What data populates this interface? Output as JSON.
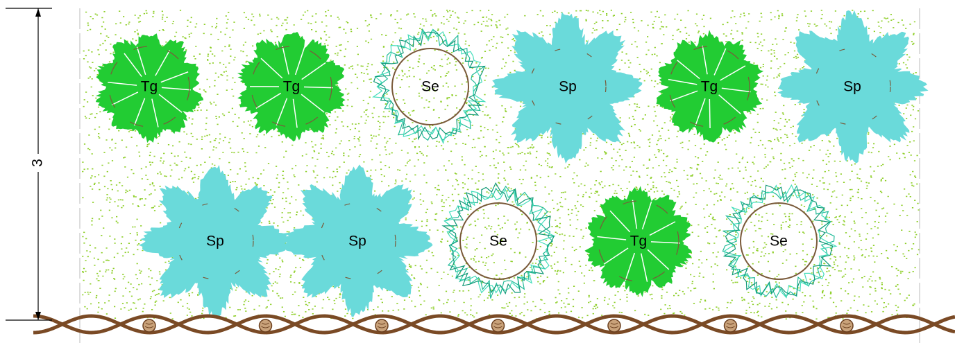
{
  "dimension": {
    "label": "3"
  },
  "plants": [
    {
      "label": "Tg"
    },
    {
      "label": "Tg"
    },
    {
      "label": "Se"
    },
    {
      "label": "Sp"
    },
    {
      "label": "Tg"
    },
    {
      "label": "Sp"
    },
    {
      "label": "Sp"
    },
    {
      "label": "Sp"
    },
    {
      "label": "Se"
    },
    {
      "label": "Tg"
    },
    {
      "label": "Se"
    }
  ]
}
